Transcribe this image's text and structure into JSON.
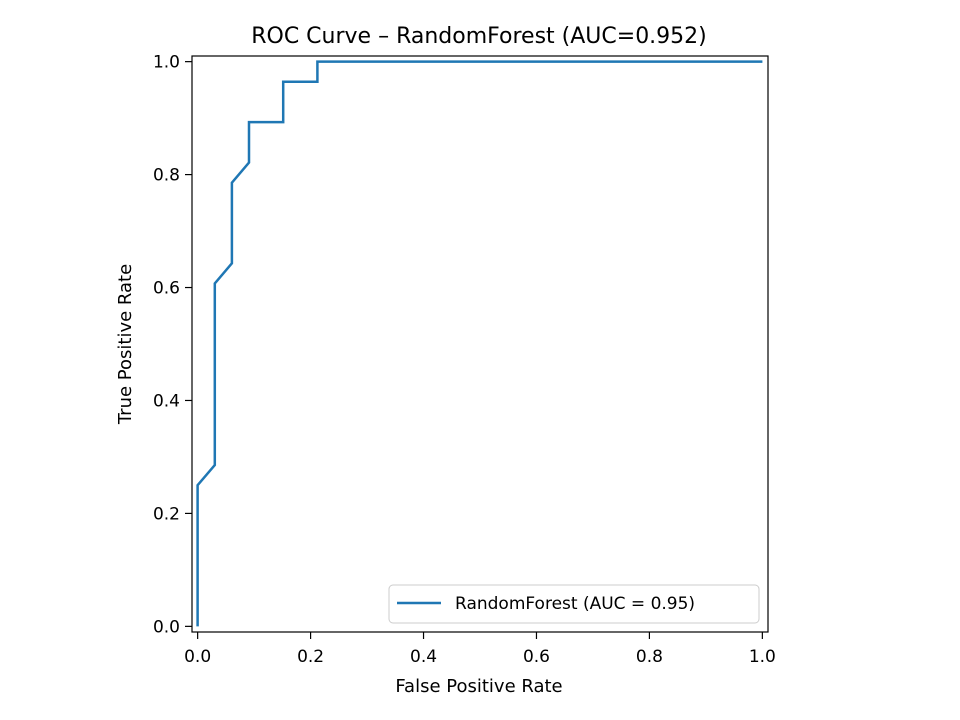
{
  "chart_data": {
    "type": "line",
    "title": "ROC Curve – RandomForest (AUC=0.952)",
    "xlabel": "False Positive Rate",
    "ylabel": "True Positive Rate",
    "xlim": [
      -0.01,
      1.01
    ],
    "ylim": [
      -0.01,
      1.01
    ],
    "xticks": [
      0.0,
      0.2,
      0.4,
      0.6,
      0.8,
      1.0
    ],
    "xtick_labels": [
      "0.0",
      "0.2",
      "0.4",
      "0.6",
      "0.8",
      "1.0"
    ],
    "yticks": [
      0.0,
      0.2,
      0.4,
      0.6,
      0.8,
      1.0
    ],
    "ytick_labels": [
      "0.0",
      "0.2",
      "0.4",
      "0.6",
      "0.8",
      "1.0"
    ],
    "grid": false,
    "legend": "lower right",
    "series": [
      {
        "name": "RandomForest (AUC = 0.95)",
        "color": "#1f77b4",
        "x": [
          0.0,
          0.0,
          0.0,
          0.0303,
          0.0303,
          0.0606,
          0.0606,
          0.0909,
          0.0909,
          0.1515,
          0.1515,
          0.2121,
          0.2121,
          1.0
        ],
        "y": [
          0.0,
          0.25,
          0.25,
          0.2857,
          0.6071,
          0.6429,
          0.7857,
          0.8214,
          0.8929,
          0.8929,
          0.9643,
          0.9643,
          1.0,
          1.0
        ]
      }
    ]
  }
}
